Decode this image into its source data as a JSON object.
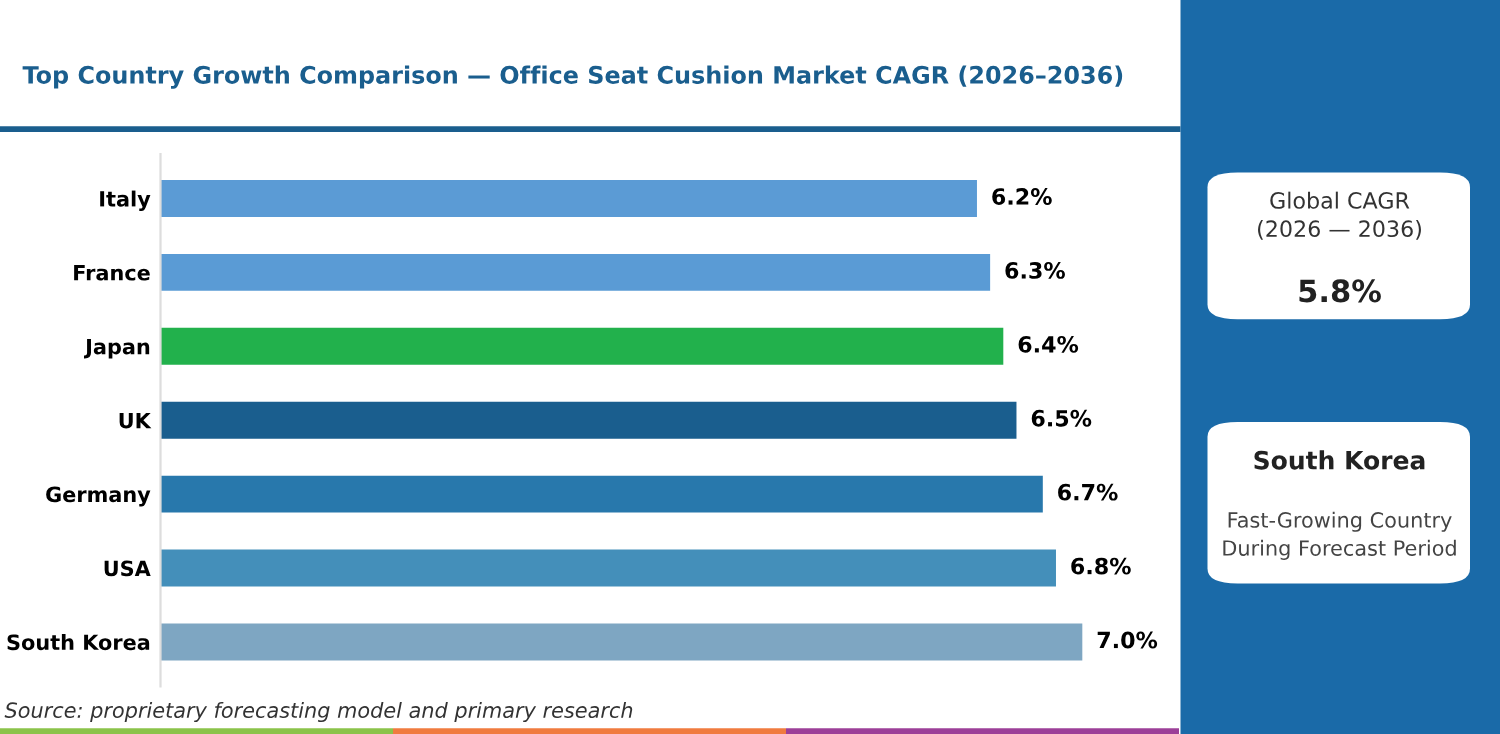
{
  "chart_data": {
    "type": "bar",
    "orientation": "horizontal",
    "title": "Top Country Growth Comparison — Office Seat Cushion Market CAGR (2026–2036)",
    "categories": [
      "Italy",
      "France",
      "Japan",
      "UK",
      "Germany",
      "USA",
      "South Korea"
    ],
    "values": [
      6.2,
      6.3,
      6.4,
      6.5,
      6.7,
      6.8,
      7.0
    ],
    "value_labels": [
      "6.2%",
      "6.3%",
      "6.4%",
      "6.5%",
      "6.7%",
      "6.8%",
      "7.0%"
    ],
    "colors": [
      "#5b9bd5",
      "#5a9bd5",
      "#22b14c",
      "#1a5e8e",
      "#2878ac",
      "#448fba",
      "#7ea6c2"
    ],
    "tick_labels": "y",
    "grid": false,
    "legend": false,
    "annotations": [
      "Global CAGR\n(2026 — 2036)",
      "5.8%",
      "South Korea",
      "Fast-Growing Country\nDuring Forecast Period",
      "Source: proprietary forecasting model and primary research"
    ]
  }
}
